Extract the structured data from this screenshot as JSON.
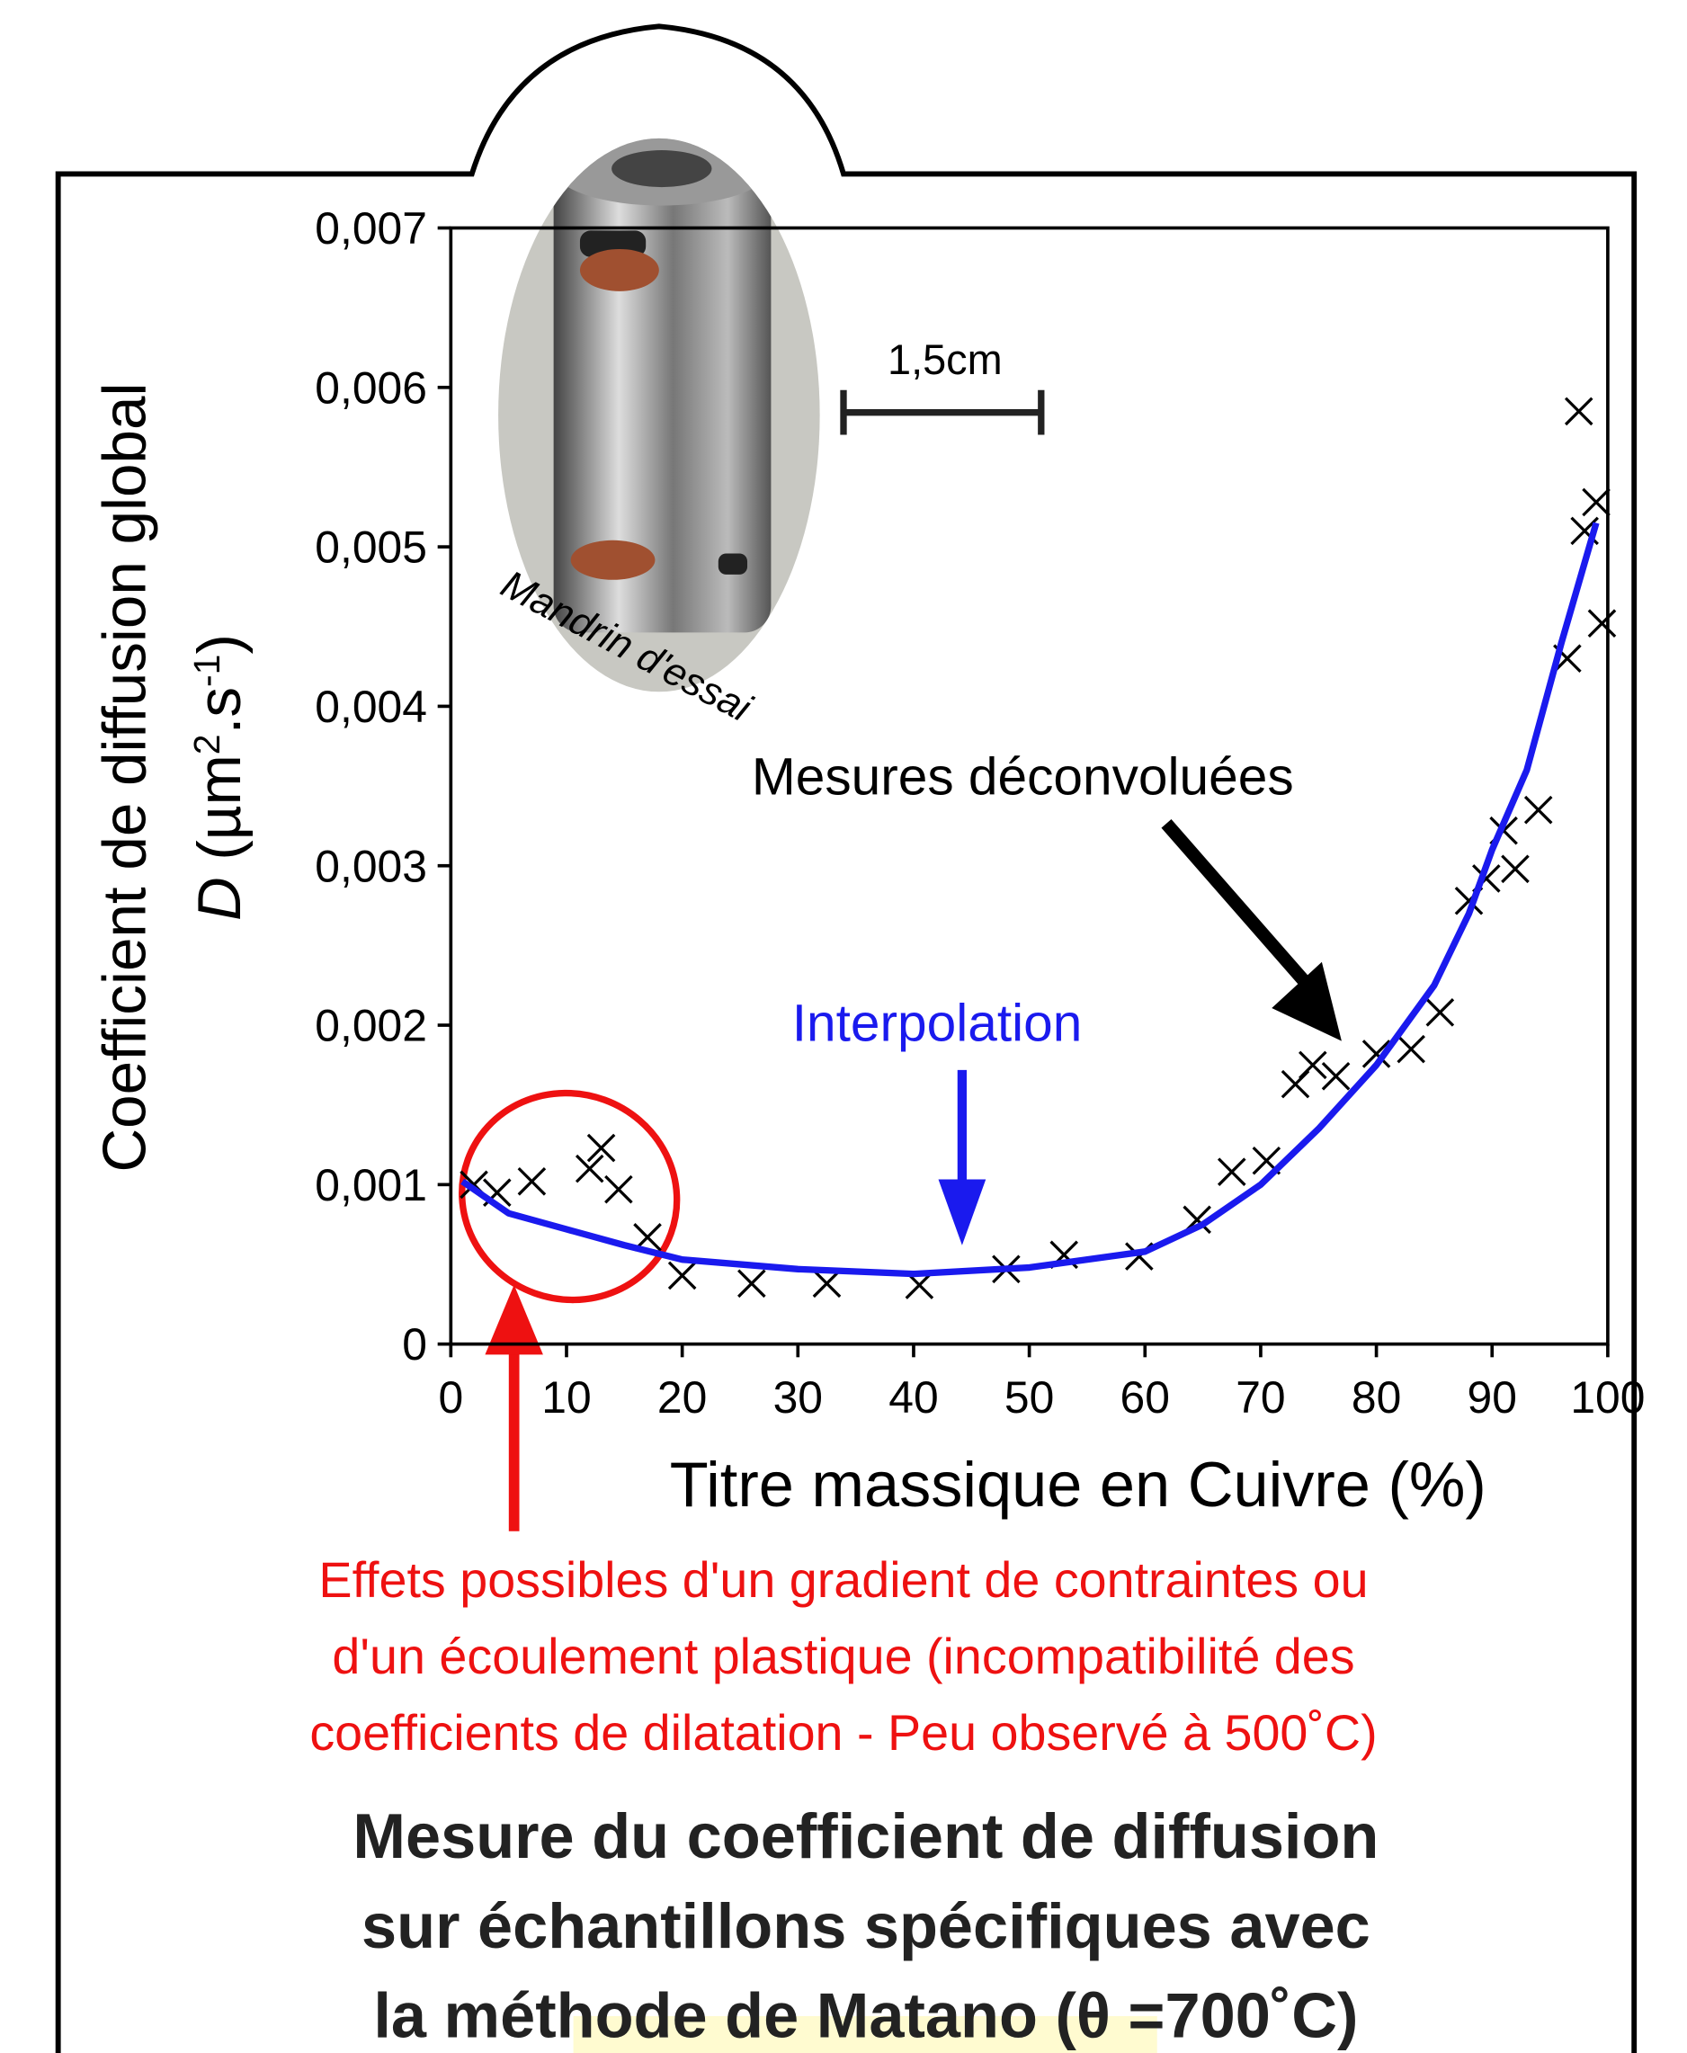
{
  "chart_data": {
    "type": "scatter",
    "xlabel": "Titre massique en Cuivre (%)",
    "ylabel_line1": "Coefficient de diffusion global",
    "ylabel_line2": {
      "symbol": "D",
      "parts": [
        "(µm",
        "2",
        ".s",
        "-1",
        ")"
      ]
    },
    "xlim": [
      0,
      100
    ],
    "ylim": [
      0,
      0.007
    ],
    "xticks": [
      0,
      10,
      20,
      30,
      40,
      50,
      60,
      70,
      80,
      90,
      100
    ],
    "yticks": [
      0,
      {
        "value": 0.001,
        "label": "0,001"
      },
      {
        "value": 0.002,
        "label": "0,002"
      },
      {
        "value": 0.003,
        "label": "0,003"
      },
      {
        "value": 0.004,
        "label": "0,004"
      },
      {
        "value": 0.005,
        "label": "0,005"
      },
      {
        "value": 0.006,
        "label": "0,006"
      },
      {
        "value": 0.007,
        "label": "0,007"
      }
    ],
    "series": [
      {
        "type": "scatter",
        "color": "#000000",
        "x": [
          2,
          4,
          7,
          12,
          13,
          14.5,
          17,
          20,
          26,
          32.5,
          40.5,
          48,
          53,
          59.5,
          64.5,
          67.5,
          70.5,
          73,
          74.5,
          76.5,
          80,
          83,
          85.5,
          88,
          89.5,
          91,
          92,
          94,
          96.5,
          97.5,
          98,
          99,
          99.5
        ],
        "values": [
          0.001,
          0.00095,
          0.00102,
          0.0011,
          0.00123,
          0.00097,
          0.00067,
          0.00043,
          0.00038,
          0.00038,
          0.00037,
          0.00047,
          0.00056,
          0.00055,
          0.00078,
          0.00108,
          0.00115,
          0.00163,
          0.00175,
          0.00168,
          0.00182,
          0.00185,
          0.00208,
          0.00278,
          0.00292,
          0.00322,
          0.00298,
          0.00335,
          0.0043,
          0.00585,
          0.0051,
          0.00528,
          0.00452
        ]
      },
      {
        "type": "line",
        "color": "#1a1aee",
        "x": [
          1,
          5,
          10,
          15,
          20,
          30,
          40,
          50,
          60,
          65,
          70,
          75,
          80,
          85,
          88,
          90,
          93,
          96,
          99
        ],
        "values": [
          0.00102,
          0.00082,
          0.00072,
          0.00062,
          0.00053,
          0.00047,
          0.00044,
          0.00048,
          0.00058,
          0.00075,
          0.001,
          0.00135,
          0.00175,
          0.00225,
          0.0027,
          0.0031,
          0.0036,
          0.0044,
          0.00515
        ]
      }
    ],
    "annotations": {
      "scale_bar": "1,5cm",
      "photo_caption": "Mandrin d'essai",
      "measures": "Mesures déconvoluées",
      "interpolation": "Interpolation",
      "note": [
        "Effets possibles d'un gradient de contraintes ou",
        "d'un écoulement plastique (incompatibilité des",
        "coefficients de dilatation - Peu observé à 500˚C)"
      ]
    },
    "title": [
      "Mesure du coefficient de diffusion",
      "sur échantillons spécifiques avec",
      "la méthode de Matano (θ =700˚C)"
    ]
  }
}
